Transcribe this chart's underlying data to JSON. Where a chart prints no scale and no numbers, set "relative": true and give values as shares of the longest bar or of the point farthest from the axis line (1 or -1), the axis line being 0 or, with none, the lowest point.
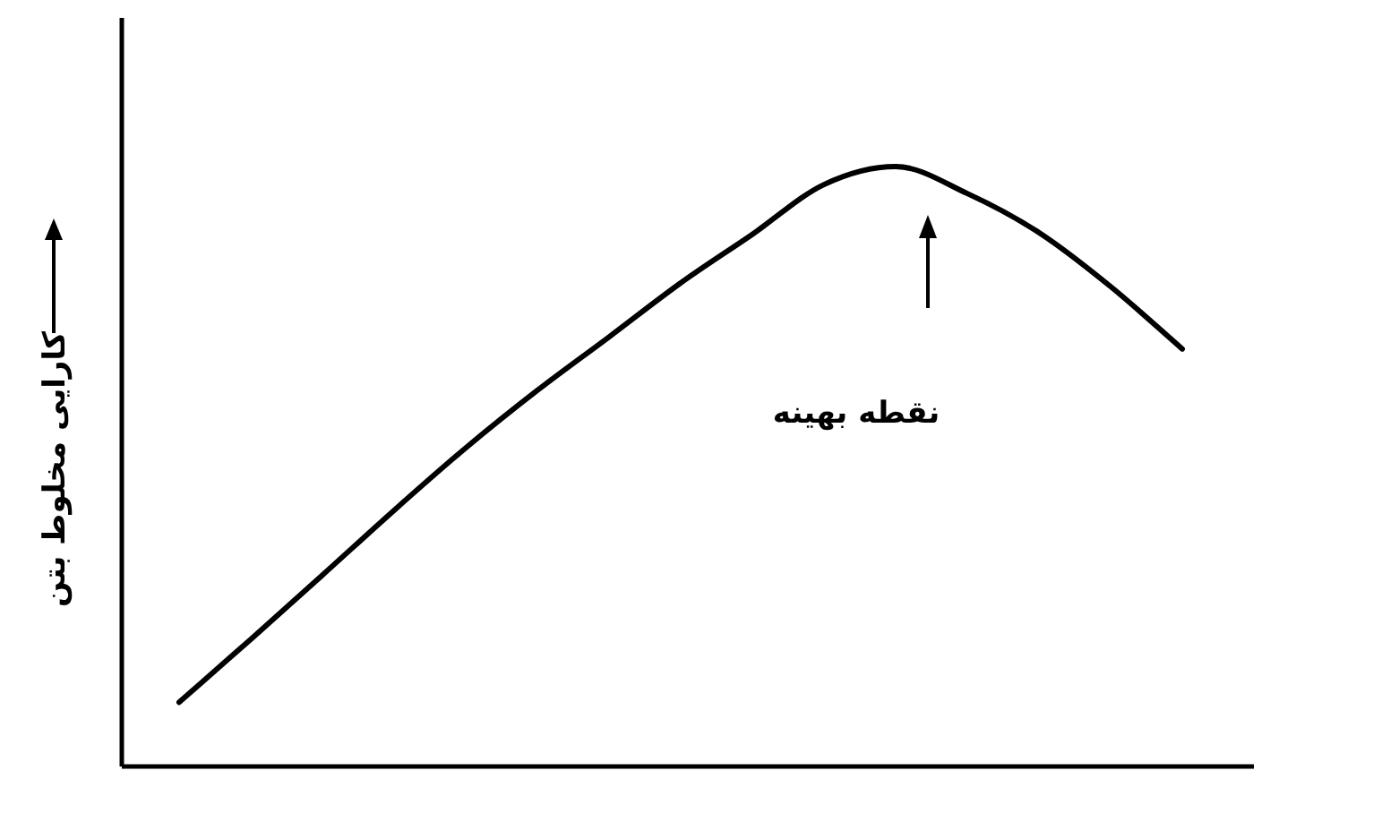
{
  "chart_data": {
    "type": "line",
    "relative": true,
    "ylabel": "کارایی مخلوط بتن",
    "annotations": [
      "نقطه بهینه"
    ],
    "categories": [
      null,
      null,
      null,
      null,
      null,
      null,
      null,
      null,
      null,
      null,
      null,
      null,
      null,
      null,
      null
    ],
    "series": [
      {
        "color": "#000000",
        "values": [
          0.107,
          0.212,
          0.319,
          0.427,
          0.531,
          0.627,
          0.716,
          0.806,
          0.887,
          0.97,
          1.0,
          0.955,
          0.89,
          0.8,
          0.696
        ]
      }
    ],
    "marker": "none",
    "line_style": "solid"
  }
}
